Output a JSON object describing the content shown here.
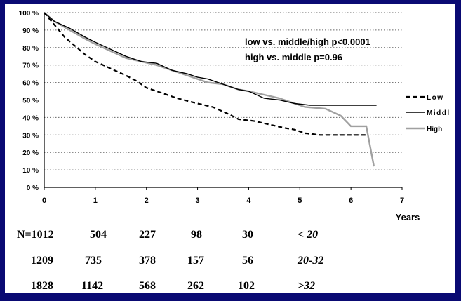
{
  "chart_data": {
    "type": "line",
    "title": "",
    "xlabel": "Years",
    "ylabel": "",
    "xlim": [
      0,
      7
    ],
    "ylim": [
      0,
      100
    ],
    "x_ticks": [
      0,
      1,
      2,
      3,
      4,
      5,
      6,
      7
    ],
    "y_ticks": [
      0,
      10,
      20,
      30,
      40,
      50,
      60,
      70,
      80,
      90,
      100
    ],
    "y_tick_labels": [
      "0 %",
      "10 %",
      "20 %",
      "30 %",
      "40 %",
      "50 %",
      "60 %",
      "70 %",
      "80 %",
      "90 %",
      "100 %"
    ],
    "grid": "horizontal-dotted",
    "legend_position": "right",
    "annotations": [
      "low  vs. middle/high p<0.0001",
      "high vs. middle  p=0.96"
    ],
    "series": [
      {
        "name": "Low",
        "style": "dashed",
        "color": "#000000",
        "points": [
          [
            0,
            100
          ],
          [
            0.2,
            93
          ],
          [
            0.4,
            86
          ],
          [
            0.6,
            81
          ],
          [
            0.8,
            76
          ],
          [
            1.0,
            72
          ],
          [
            1.3,
            68
          ],
          [
            1.6,
            64
          ],
          [
            1.8,
            61
          ],
          [
            2.0,
            57
          ],
          [
            2.3,
            54
          ],
          [
            2.6,
            51
          ],
          [
            3.0,
            48
          ],
          [
            3.3,
            46
          ],
          [
            3.6,
            42
          ],
          [
            3.8,
            39
          ],
          [
            4.1,
            38
          ],
          [
            4.4,
            36
          ],
          [
            4.7,
            34
          ],
          [
            4.9,
            33
          ],
          [
            5.1,
            31
          ],
          [
            5.4,
            30
          ],
          [
            6.0,
            30
          ],
          [
            6.3,
            30
          ]
        ]
      },
      {
        "name": "Middl",
        "style": "solid",
        "color": "#000000",
        "points": [
          [
            0,
            100
          ],
          [
            0.2,
            95
          ],
          [
            0.5,
            91
          ],
          [
            0.8,
            86
          ],
          [
            1.0,
            83
          ],
          [
            1.3,
            79
          ],
          [
            1.6,
            75
          ],
          [
            1.9,
            72
          ],
          [
            2.2,
            71
          ],
          [
            2.5,
            67
          ],
          [
            2.8,
            65
          ],
          [
            3.0,
            63
          ],
          [
            3.2,
            62
          ],
          [
            3.5,
            59
          ],
          [
            3.8,
            56
          ],
          [
            4.0,
            55
          ],
          [
            4.3,
            51
          ],
          [
            4.6,
            50
          ],
          [
            4.9,
            48
          ],
          [
            5.2,
            47
          ],
          [
            5.5,
            47
          ],
          [
            6.0,
            47
          ],
          [
            6.5,
            47
          ]
        ]
      },
      {
        "name": "High",
        "style": "solid",
        "color": "#a0a0a0",
        "points": [
          [
            0,
            100
          ],
          [
            0.2,
            95
          ],
          [
            0.5,
            90
          ],
          [
            0.8,
            85
          ],
          [
            1.0,
            82
          ],
          [
            1.3,
            78
          ],
          [
            1.6,
            74
          ],
          [
            1.9,
            72
          ],
          [
            2.2,
            70
          ],
          [
            2.5,
            67
          ],
          [
            2.8,
            64
          ],
          [
            3.0,
            62
          ],
          [
            3.2,
            60
          ],
          [
            3.5,
            59
          ],
          [
            3.8,
            56
          ],
          [
            4.0,
            55
          ],
          [
            4.3,
            53
          ],
          [
            4.6,
            51
          ],
          [
            4.9,
            48
          ],
          [
            5.1,
            46
          ],
          [
            5.5,
            45
          ],
          [
            5.8,
            41
          ],
          [
            6.0,
            35
          ],
          [
            6.3,
            35
          ],
          [
            6.45,
            12
          ]
        ]
      }
    ]
  },
  "risk_table": {
    "rows": [
      {
        "values": [
          "N=1012",
          "504",
          "227",
          "98",
          "30"
        ],
        "label": "< 20"
      },
      {
        "values": [
          "1209",
          "735",
          "378",
          "157",
          "56"
        ],
        "label": "20-32"
      },
      {
        "values": [
          "1828",
          "1142",
          "568",
          "262",
          "102"
        ],
        "label": ">32"
      }
    ]
  }
}
